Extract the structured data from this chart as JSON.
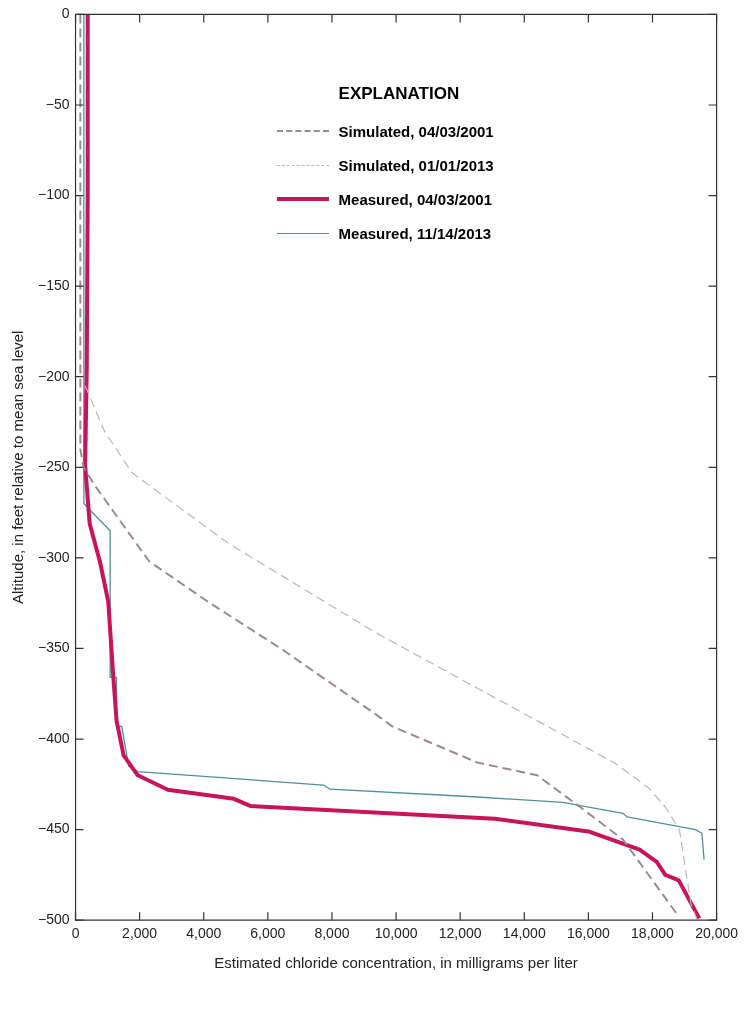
{
  "chart_data": {
    "type": "line",
    "xlabel": "Estimated chloride concentration, in milligrams per liter",
    "ylabel": "Altitude, in feet relative to mean sea level",
    "legend_title": "EXPLANATION",
    "xlim": [
      0,
      20000
    ],
    "xticks": [
      0,
      {
        "value": 2000,
        "label": "2,000"
      },
      {
        "value": 4000,
        "label": "4,000"
      },
      {
        "value": 6000,
        "label": "6,000"
      },
      {
        "value": 8000,
        "label": "8,000"
      },
      {
        "value": 10000,
        "label": "10,000"
      },
      {
        "value": 12000,
        "label": "12,000"
      },
      {
        "value": 14000,
        "label": "14,000"
      },
      {
        "value": 16000,
        "label": "16,000"
      },
      {
        "value": 18000,
        "label": "18,000"
      },
      {
        "value": 20000,
        "label": "20,000"
      }
    ],
    "ylim": [
      -500,
      0
    ],
    "yticks": [
      {
        "value": -500,
        "label": "−500"
      },
      {
        "value": -450,
        "label": "−450"
      },
      {
        "value": -400,
        "label": "−400"
      },
      {
        "value": -350,
        "label": "−350"
      },
      {
        "value": -300,
        "label": "−300"
      },
      {
        "value": -250,
        "label": "−250"
      },
      {
        "value": -200,
        "label": "−200"
      },
      {
        "value": -150,
        "label": "−150"
      },
      {
        "value": -100,
        "label": "−100"
      },
      {
        "value": -50,
        "label": "−50"
      },
      0
    ],
    "grid": false,
    "legend": "top right",
    "marker": "none",
    "series": [
      {
        "name": "Simulated, 04/03/2001",
        "color": "#9b8a8e",
        "line_style": "dashed",
        "x": [
          150,
          150,
          250,
          600,
          2300,
          4200,
          6400,
          9340,
          9880,
          12540,
          14400,
          15740,
          17080,
          18820
        ],
        "values": [
          0,
          -240,
          -250,
          -260,
          -302,
          -325,
          -350,
          -386,
          -393,
          -413,
          -420,
          -437.5,
          -455.5,
          -498
        ]
      },
      {
        "name": "Simulated, 01/01/2013",
        "color": "#b8b8b8",
        "line_style": "dashed",
        "x": [
          300,
          900,
          1760,
          4770,
          9340,
          12540,
          16800,
          17880,
          18400,
          18840,
          19200,
          19400
        ],
        "values": [
          -205,
          -230,
          -253,
          -292,
          -341,
          -372,
          -413,
          -427,
          -437.5,
          -450,
          -491,
          -500
        ]
      },
      {
        "name": "Measured, 04/03/2001",
        "color": "#c8145a",
        "line_style": "solid",
        "x": [
          380,
          380,
          350,
          300,
          440,
          760,
          1020,
          1180,
          1280,
          1500,
          1820,
          1940,
          2880,
          4940,
          5470,
          13080,
          16000,
          17600,
          18140,
          18400,
          18820,
          19460
        ],
        "values": [
          0,
          -100,
          -195,
          -249,
          -281,
          -302,
          -324,
          -366,
          -390,
          -409,
          -417,
          -420,
          -428,
          -433,
          -437,
          -444,
          -451,
          -461,
          -468,
          -475,
          -478,
          -499
        ]
      },
      {
        "name": "Measured, 11/14/2013",
        "color": "#4f8f96",
        "line_style": "solid",
        "x": [
          260,
          260,
          470,
          640,
          1080,
          1080,
          1280,
          1280,
          1440,
          1660,
          1940,
          7740,
          7940,
          12540,
          15200,
          17080,
          17210,
          19340,
          19540,
          19610
        ],
        "values": [
          0,
          -270,
          -274,
          -277,
          -285,
          -366,
          -366,
          -393,
          -393,
          -415,
          -418,
          -425.4,
          -427.7,
          -432,
          -435,
          -441,
          -443,
          -450,
          -452,
          -466.6
        ]
      }
    ]
  }
}
